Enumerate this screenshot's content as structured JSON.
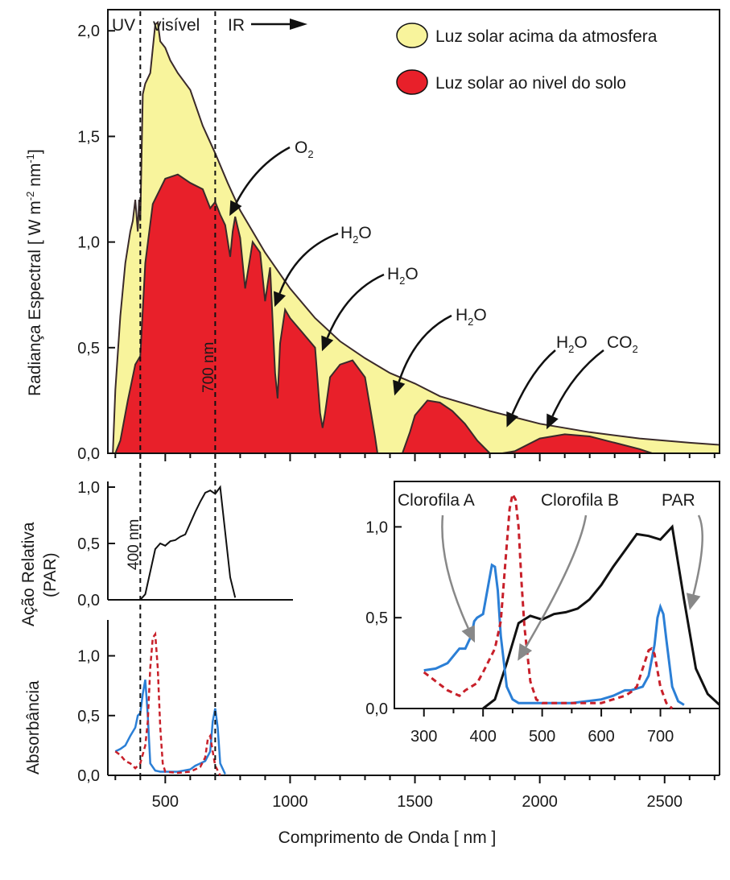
{
  "chart_data": [
    {
      "id": "spectrum",
      "type": "area",
      "ylabel_main": "Radiança Espectral [ W m",
      "ylabel_sup1": "-2",
      "ylabel_mid": " nm",
      "ylabel_sup2": "-1",
      "ylabel_end": "]",
      "xlim": [
        270,
        2720
      ],
      "ylim": [
        0,
        2.1
      ],
      "yticks": [
        0.0,
        0.5,
        1.0,
        1.5,
        2.0
      ],
      "yticklabels": [
        "0,0",
        "0,5",
        "1,0",
        "1,5",
        "2,0"
      ],
      "region_labels": {
        "uv": "UV",
        "visible": "visível",
        "ir": "IR"
      },
      "vline_label": "700 nm",
      "legend": [
        {
          "label": "Luz solar acima da atmosfera",
          "color": "#f8f49c"
        },
        {
          "label": "Luz solar ao nivel do solo",
          "color": "#e8202a"
        }
      ],
      "annotations": [
        {
          "main": "O",
          "sub": "2",
          "tip_x": 760,
          "tip_y": 1.13
        },
        {
          "main": "H",
          "sub": "2",
          "post": "O",
          "tip_x": 940,
          "tip_y": 0.7
        },
        {
          "main": "H",
          "sub": "2",
          "post": "O",
          "tip_x": 1130,
          "tip_y": 0.49
        },
        {
          "main": "H",
          "sub": "2",
          "post": "O",
          "tip_x": 1420,
          "tip_y": 0.28
        },
        {
          "main": "H",
          "sub": "2",
          "post": "O",
          "tip_x": 1870,
          "tip_y": 0.13
        },
        {
          "main": "CO",
          "sub": "2",
          "tip_x": 2030,
          "tip_y": 0.12
        }
      ],
      "series": [
        {
          "name": "Luz solar acima da atmosfera",
          "color": "#f8f49c",
          "x": [
            290,
            300,
            320,
            340,
            360,
            370,
            380,
            390,
            395,
            400,
            410,
            420,
            440,
            460,
            470,
            480,
            500,
            520,
            550,
            600,
            650,
            700,
            750,
            800,
            900,
            1000,
            1100,
            1200,
            1300,
            1400,
            1500,
            1600,
            1800,
            2000,
            2200,
            2400,
            2600,
            2720
          ],
          "y": [
            0.0,
            0.3,
            0.65,
            0.9,
            1.05,
            1.1,
            1.2,
            1.05,
            1.2,
            1.1,
            1.7,
            1.75,
            1.8,
            2.03,
            2.04,
            1.95,
            1.92,
            1.86,
            1.8,
            1.72,
            1.55,
            1.42,
            1.28,
            1.15,
            0.95,
            0.78,
            0.64,
            0.53,
            0.45,
            0.38,
            0.33,
            0.27,
            0.2,
            0.14,
            0.1,
            0.07,
            0.05,
            0.04
          ]
        },
        {
          "name": "Luz solar ao nivel do solo",
          "color": "#e8202a",
          "x": [
            300,
            320,
            350,
            380,
            400,
            420,
            450,
            500,
            550,
            600,
            650,
            680,
            700,
            720,
            740,
            760,
            770,
            780,
            800,
            820,
            850,
            880,
            900,
            920,
            940,
            950,
            960,
            980,
            1000,
            1050,
            1100,
            1120,
            1130,
            1140,
            1160,
            1200,
            1250,
            1300,
            1340,
            1350,
            1400,
            1450,
            1480,
            1500,
            1550,
            1600,
            1650,
            1700,
            1750,
            1800,
            1850,
            1900,
            1950,
            2000,
            2050,
            2100,
            2200,
            2300,
            2400,
            2450,
            2720
          ],
          "y": [
            0.0,
            0.06,
            0.25,
            0.42,
            0.46,
            0.9,
            1.18,
            1.3,
            1.32,
            1.28,
            1.25,
            1.16,
            1.19,
            1.13,
            1.08,
            0.93,
            1.05,
            1.12,
            1.02,
            0.78,
            1.0,
            0.95,
            0.72,
            0.88,
            0.38,
            0.26,
            0.52,
            0.68,
            0.64,
            0.57,
            0.5,
            0.19,
            0.12,
            0.19,
            0.36,
            0.42,
            0.44,
            0.36,
            0.08,
            0.0,
            0.0,
            0.0,
            0.1,
            0.18,
            0.25,
            0.24,
            0.2,
            0.14,
            0.06,
            0.0,
            0.0,
            0.01,
            0.04,
            0.07,
            0.08,
            0.09,
            0.08,
            0.05,
            0.02,
            0.0,
            0.0
          ]
        }
      ]
    },
    {
      "id": "par",
      "type": "line",
      "ylabel": "Ação Relativa",
      "ylabel2": "(PAR)",
      "vline_label": "400 nm",
      "xlim": [
        270,
        2720
      ],
      "ylim": [
        0,
        1.05
      ],
      "yticklabels": [
        "0,0",
        "0,5",
        "1,0"
      ],
      "x": [
        400,
        420,
        440,
        460,
        480,
        500,
        520,
        540,
        560,
        580,
        600,
        620,
        640,
        660,
        680,
        700,
        720,
        740,
        760,
        780
      ],
      "y": [
        0.0,
        0.05,
        0.25,
        0.45,
        0.5,
        0.48,
        0.52,
        0.53,
        0.56,
        0.58,
        0.68,
        0.78,
        0.87,
        0.95,
        0.97,
        0.94,
        1.0,
        0.6,
        0.2,
        0.02
      ]
    },
    {
      "id": "absorbance",
      "type": "line",
      "ylabel": "Absorbância",
      "xlabel": "Comprimento de Onda [ nm ]",
      "xlim": [
        270,
        2720
      ],
      "ylim": [
        0,
        1.3
      ],
      "yticklabels": [
        "0,0",
        "0,5",
        "1,0"
      ],
      "xtick_values": [
        500,
        1000,
        1500,
        2000,
        2500
      ],
      "xticklabels": [
        "500",
        "1000",
        "1500",
        "2000",
        "2500"
      ],
      "series": [
        {
          "name": "Clorofila A",
          "color": "#2b7fd6",
          "dash": "none",
          "x": [
            300,
            320,
            340,
            360,
            380,
            390,
            400,
            410,
            420,
            430,
            440,
            460,
            480,
            500,
            550,
            600,
            620,
            640,
            660,
            680,
            690,
            700,
            710,
            720,
            740
          ],
          "y": [
            0.2,
            0.22,
            0.25,
            0.33,
            0.4,
            0.5,
            0.52,
            0.68,
            0.8,
            0.5,
            0.1,
            0.04,
            0.03,
            0.03,
            0.03,
            0.05,
            0.08,
            0.1,
            0.12,
            0.2,
            0.45,
            0.56,
            0.4,
            0.1,
            0.01
          ]
        },
        {
          "name": "Clorofila B",
          "color": "#c8202a",
          "dash": "6 4",
          "x": [
            300,
            320,
            340,
            360,
            380,
            400,
            420,
            430,
            440,
            450,
            460,
            470,
            480,
            490,
            500,
            550,
            600,
            640,
            660,
            670,
            680,
            690,
            700,
            720
          ],
          "y": [
            0.2,
            0.17,
            0.12,
            0.1,
            0.06,
            0.1,
            0.25,
            0.45,
            0.9,
            1.15,
            1.18,
            0.9,
            0.4,
            0.1,
            0.03,
            0.02,
            0.03,
            0.07,
            0.15,
            0.3,
            0.33,
            0.2,
            0.08,
            0.0
          ]
        }
      ]
    },
    {
      "id": "inset",
      "type": "line",
      "xlim": [
        250,
        800
      ],
      "ylim": [
        0,
        1.25
      ],
      "xtick_values": [
        300,
        400,
        500,
        600,
        700
      ],
      "xticklabels": [
        "300",
        "400",
        "500",
        "600",
        "700"
      ],
      "yticklabels": [
        "0,0",
        "0,5",
        "1,0"
      ],
      "labels": [
        {
          "text": "Clorofila A",
          "tip_x": 385,
          "tip_y": 0.37
        },
        {
          "text": "Clorofila B",
          "tip_x": 460,
          "tip_y": 0.27
        },
        {
          "text": "PAR",
          "tip_x": 750,
          "tip_y": 0.55
        }
      ],
      "series": [
        {
          "name": "Clorofila A",
          "color": "#2b7fd6",
          "dash": "none",
          "x": [
            300,
            320,
            340,
            360,
            370,
            380,
            385,
            390,
            400,
            410,
            415,
            420,
            425,
            430,
            440,
            450,
            460,
            480,
            500,
            550,
            600,
            620,
            640,
            650,
            660,
            670,
            680,
            690,
            695,
            700,
            705,
            710,
            720,
            730,
            740
          ],
          "y": [
            0.21,
            0.22,
            0.25,
            0.33,
            0.33,
            0.4,
            0.48,
            0.5,
            0.52,
            0.7,
            0.79,
            0.78,
            0.65,
            0.4,
            0.12,
            0.05,
            0.03,
            0.03,
            0.03,
            0.03,
            0.05,
            0.07,
            0.1,
            0.1,
            0.11,
            0.12,
            0.18,
            0.35,
            0.5,
            0.56,
            0.52,
            0.38,
            0.12,
            0.04,
            0.02
          ]
        },
        {
          "name": "Clorofila B",
          "color": "#c8202a",
          "dash": "6 4",
          "x": [
            300,
            320,
            340,
            360,
            370,
            380,
            390,
            400,
            420,
            430,
            440,
            445,
            450,
            455,
            460,
            465,
            470,
            480,
            490,
            500,
            550,
            600,
            620,
            640,
            650,
            660,
            670,
            680,
            685,
            690,
            700,
            710,
            720
          ],
          "y": [
            0.2,
            0.15,
            0.1,
            0.07,
            0.1,
            0.12,
            0.14,
            0.2,
            0.33,
            0.48,
            0.9,
            1.1,
            1.18,
            1.15,
            1.0,
            0.7,
            0.45,
            0.15,
            0.05,
            0.03,
            0.03,
            0.03,
            0.05,
            0.07,
            0.09,
            0.12,
            0.22,
            0.32,
            0.33,
            0.3,
            0.12,
            0.03,
            0.0
          ]
        },
        {
          "name": "PAR",
          "color": "#111111",
          "dash": "none",
          "x": [
            400,
            420,
            440,
            460,
            480,
            500,
            520,
            540,
            560,
            580,
            600,
            620,
            640,
            660,
            680,
            700,
            720,
            740,
            760,
            780,
            800
          ],
          "y": [
            0.0,
            0.05,
            0.25,
            0.47,
            0.51,
            0.49,
            0.52,
            0.53,
            0.55,
            0.6,
            0.68,
            0.78,
            0.87,
            0.96,
            0.95,
            0.93,
            1.0,
            0.6,
            0.22,
            0.08,
            0.02
          ]
        }
      ]
    }
  ]
}
